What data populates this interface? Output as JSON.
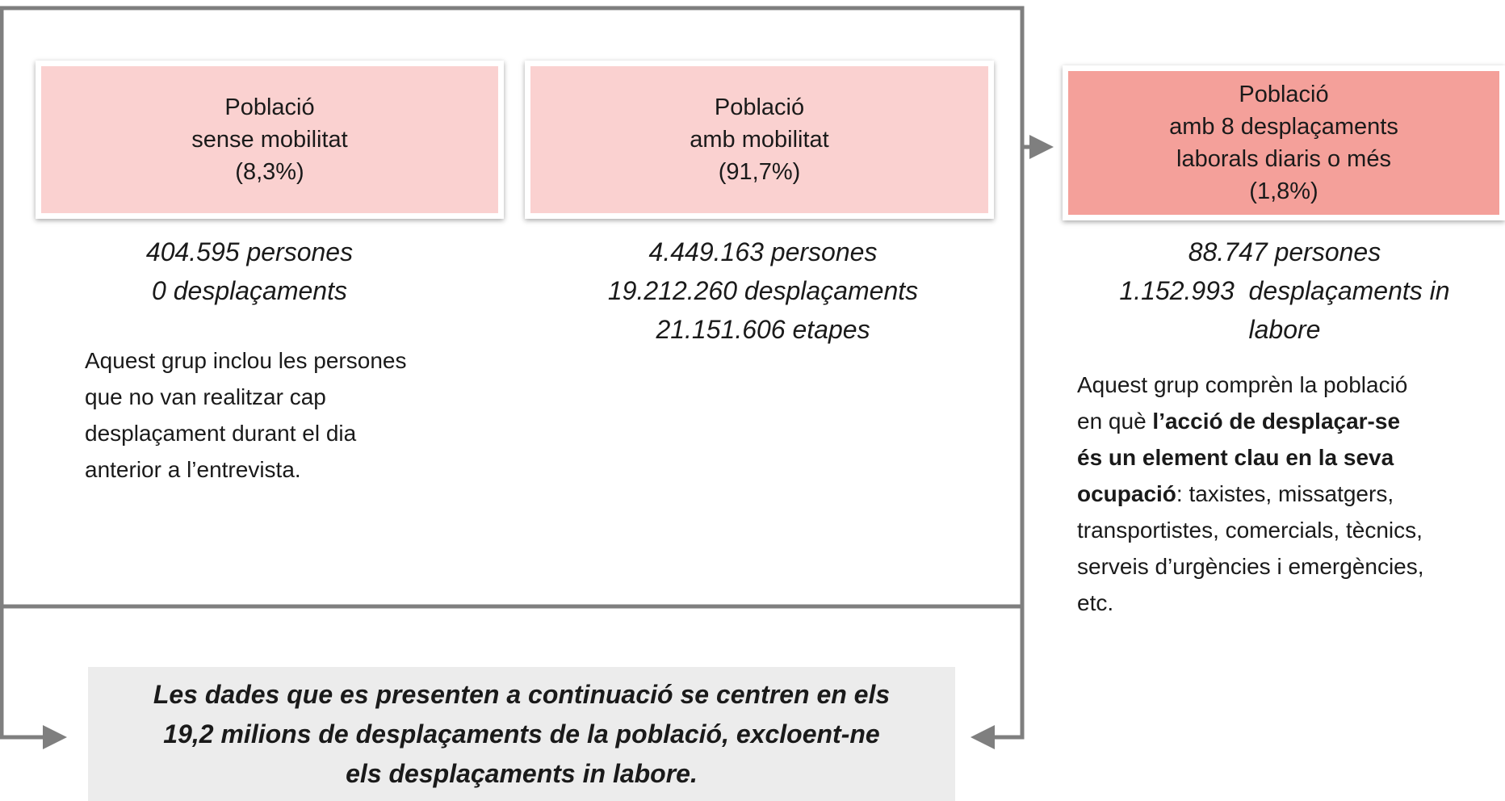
{
  "boxes": [
    {
      "title": [
        "Població",
        "sense mobilitat",
        "(8,3%)"
      ],
      "stats": [
        "404.595 persones",
        "0 desplaçaments"
      ],
      "description": [
        [
          {
            "text": "Aquest grup inclou les persones"
          }
        ],
        [
          {
            "text": "que no van realitzar cap"
          }
        ],
        [
          {
            "text": "desplaçament durant el dia"
          }
        ],
        [
          {
            "text": "anterior a l’entrevista."
          }
        ]
      ]
    },
    {
      "title": [
        "Població",
        "amb mobilitat",
        "(91,7%)"
      ],
      "stats": [
        "4.449.163 persones",
        "19.212.260 desplaçaments",
        "21.151.606 etapes"
      ]
    },
    {
      "title": [
        "Població",
        "amb 8 desplaçaments",
        "laborals diaris o més",
        "(1,8%)"
      ],
      "stats": [
        "88.747 persones",
        "1.152.993  desplaçaments in",
        "labore"
      ],
      "description": [
        [
          {
            "text": "Aquest grup comprèn la població"
          }
        ],
        [
          {
            "text": "en què "
          },
          {
            "text": "l’acció de desplaçar-se",
            "bold": true
          }
        ],
        [
          {
            "text": "és un element clau en la seva",
            "bold": true
          }
        ],
        [
          {
            "text": "ocupació",
            "bold": true
          },
          {
            "text": ": taxistes, missatgers,"
          }
        ],
        [
          {
            "text": "transportistes, comercials, tècnics,"
          }
        ],
        [
          {
            "text": "serveis d’urgències i emergències,"
          }
        ],
        [
          {
            "text": "etc."
          }
        ]
      ]
    }
  ],
  "note": [
    "Les dades que es presenten a continuació se centren en els",
    "19,2 milions de desplaçaments de la població, excloent-ne",
    "els desplaçaments in labore."
  ]
}
